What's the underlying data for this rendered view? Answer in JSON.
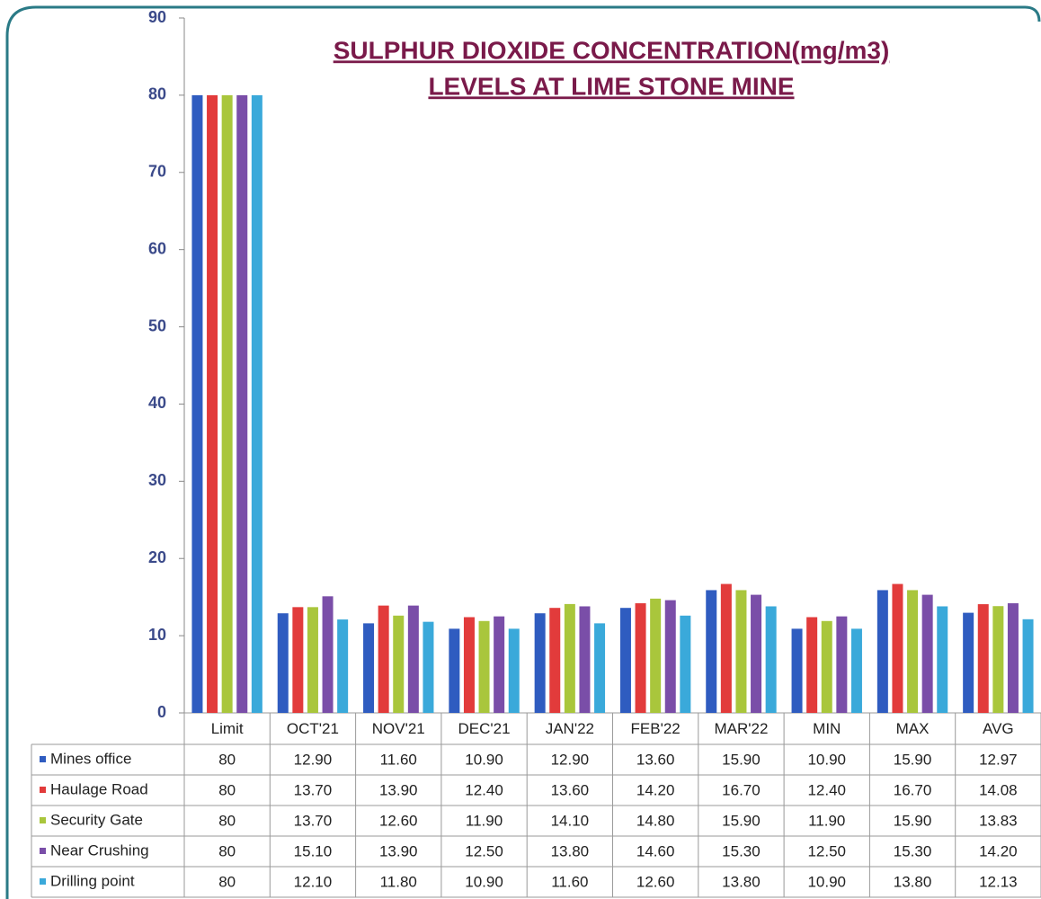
{
  "chart_data": {
    "type": "bar",
    "title": [
      "SULPHUR DIOXIDE CONCENTRATION(mg/m3)",
      "LEVELS AT  LIME STONE  MINE"
    ],
    "categories": [
      "Limit",
      "OCT'21",
      "NOV'21",
      "DEC'21",
      "JAN'22",
      "FEB'22",
      "MAR'22",
      "MIN",
      "MAX",
      "AVG"
    ],
    "ylim": [
      0,
      90
    ],
    "yticks": [
      0,
      10,
      20,
      30,
      40,
      50,
      60,
      70,
      80,
      90
    ],
    "grid": false,
    "series": [
      {
        "name": "Mines office",
        "color": "#2f5cc0",
        "values": [
          80,
          12.9,
          11.6,
          10.9,
          12.9,
          13.6,
          15.9,
          10.9,
          15.9,
          12.97
        ],
        "value_labels": [
          "80",
          "12.90",
          "11.60",
          "10.90",
          "12.90",
          "13.60",
          "15.90",
          "10.90",
          "15.90",
          "12.97"
        ]
      },
      {
        "name": "Haulage Road",
        "color": "#e23b3b",
        "values": [
          80,
          13.7,
          13.9,
          12.4,
          13.6,
          14.2,
          16.7,
          12.4,
          16.7,
          14.08
        ],
        "value_labels": [
          "80",
          "13.70",
          "13.90",
          "12.40",
          "13.60",
          "14.20",
          "16.70",
          "12.40",
          "16.70",
          "14.08"
        ]
      },
      {
        "name": "Security Gate",
        "color": "#a9c63c",
        "values": [
          80,
          13.7,
          12.6,
          11.9,
          14.1,
          14.8,
          15.9,
          11.9,
          15.9,
          13.83
        ],
        "value_labels": [
          "80",
          "13.70",
          "12.60",
          "11.90",
          "14.10",
          "14.80",
          "15.90",
          "11.90",
          "15.90",
          "13.83"
        ]
      },
      {
        "name": "Near Crushing",
        "color": "#7a4ea8",
        "values": [
          80,
          15.1,
          13.9,
          12.5,
          13.8,
          14.6,
          15.3,
          12.5,
          15.3,
          14.2
        ],
        "value_labels": [
          "80",
          "15.10",
          "13.90",
          "12.50",
          "13.80",
          "14.60",
          "15.30",
          "12.50",
          "15.30",
          "14.20"
        ]
      },
      {
        "name": "Drilling point",
        "color": "#3aa9da",
        "values": [
          80,
          12.1,
          11.8,
          10.9,
          11.6,
          12.6,
          13.8,
          10.9,
          13.8,
          12.13
        ],
        "value_labels": [
          "80",
          "12.10",
          "11.80",
          "10.90",
          "11.60",
          "12.60",
          "13.80",
          "10.90",
          "13.80",
          "12.13"
        ]
      }
    ]
  }
}
